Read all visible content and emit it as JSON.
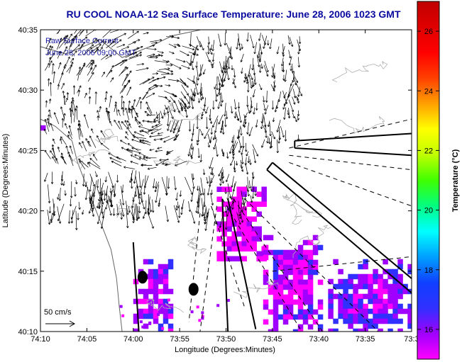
{
  "chart_data": {
    "type": "heatmap",
    "title": "RU COOL   NOAA-12  Sea Surface Temperature:  June 28, 2006 1023 GMT",
    "xlabel": "Longitude (Degrees:Minutes)",
    "ylabel": "Latitude (Degrees:Minutes)",
    "colorbar_label": "Temperature (°C)",
    "x_ticks": [
      "74:10",
      "74:05",
      "74:00",
      "73:55",
      "73:50",
      "73:45",
      "73:40",
      "73:35",
      "73:3"
    ],
    "x_tick_values": [
      -74.1667,
      -74.0833,
      -74.0,
      -73.9167,
      -73.8333,
      -73.75,
      -73.6667,
      -73.5833,
      -73.5
    ],
    "y_ticks": [
      "40:35",
      "40:30",
      "40:25",
      "40:20",
      "40:15",
      "40:10"
    ],
    "y_tick_values": [
      40.5833,
      40.5,
      40.4167,
      40.3333,
      40.25,
      40.1667
    ],
    "xlim": [
      -74.1667,
      -73.5
    ],
    "ylim": [
      40.1667,
      40.5833
    ],
    "colorbar": {
      "ticks": [
        26,
        24,
        22,
        20,
        18,
        16
      ],
      "range": [
        15,
        27
      ],
      "colors": [
        "#ff00ff",
        "#a000ff",
        "#3030ff",
        "#1040ff",
        "#00a0ff",
        "#00ffff",
        "#00ff80",
        "#40ff00",
        "#c0ff00",
        "#ffff00",
        "#ffa000",
        "#ff4000",
        "#ff0000",
        "#e00000",
        "#c00000"
      ]
    },
    "legend": {
      "line1": "Raw Surface Current",
      "line2": "June 28, 2006 09:00 GMT"
    },
    "scale_label": "50 cm/s",
    "markers": [
      {
        "lon": -73.9833,
        "lat": 40.2417
      },
      {
        "lon": -73.8917,
        "lat": 40.225
      }
    ],
    "sst_patches": [
      {
        "lon": [
          -74.1667,
          -74.1583
        ],
        "lat": [
          40.4417,
          40.4583
        ],
        "temp": 15.3
      },
      {
        "lon": [
          -74.0,
          -73.9333
        ],
        "lat": [
          40.1667,
          40.2667
        ],
        "temp": 16.0
      },
      {
        "lon": [
          -73.85,
          -73.7667
        ],
        "lat": [
          40.2667,
          40.3667
        ],
        "temp": 15.4
      },
      {
        "lon": [
          -73.7667,
          -73.6667
        ],
        "lat": [
          40.1667,
          40.3
        ],
        "temp": 15.8
      },
      {
        "lon": [
          -73.65,
          -73.5
        ],
        "lat": [
          40.1667,
          40.2667
        ],
        "temp": 16.2
      }
    ]
  }
}
